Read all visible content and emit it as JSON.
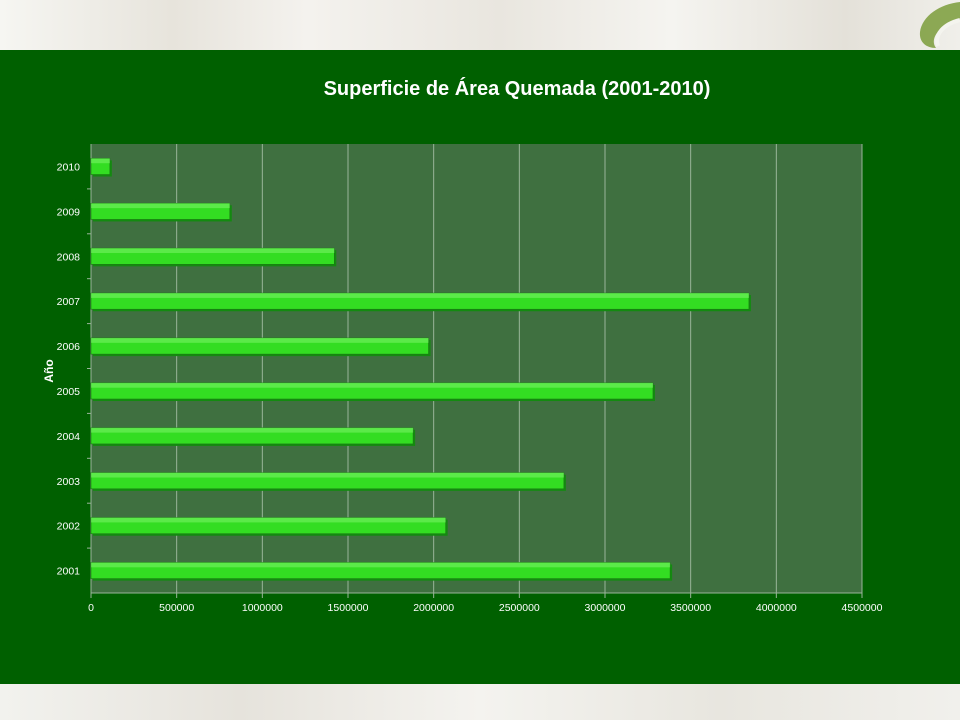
{
  "colors": {
    "slide_background": "#006000",
    "plot_background": "#3f7040",
    "bar_fill": "#33dd22",
    "bar_shadow": "#138a10"
  },
  "logo": {
    "icon": "leaf-logo-icon"
  },
  "chart_data": {
    "type": "bar",
    "orientation": "horizontal",
    "title": "Superficie de Área Quemada (2001-2010)",
    "xlabel": "",
    "ylabel": "Año",
    "categories": [
      "2001",
      "2002",
      "2003",
      "2004",
      "2005",
      "2006",
      "2007",
      "2008",
      "2009",
      "2010"
    ],
    "values": [
      3380000,
      2070000,
      2760000,
      1880000,
      3280000,
      1970000,
      3840000,
      1420000,
      810000,
      110000
    ],
    "xlim": [
      0,
      4500000
    ],
    "xticks": [
      "0",
      "500000",
      "1000000",
      "1500000",
      "2000000",
      "2500000",
      "3000000",
      "3500000",
      "4000000",
      "4500000"
    ],
    "grid": true,
    "legend": "none"
  }
}
